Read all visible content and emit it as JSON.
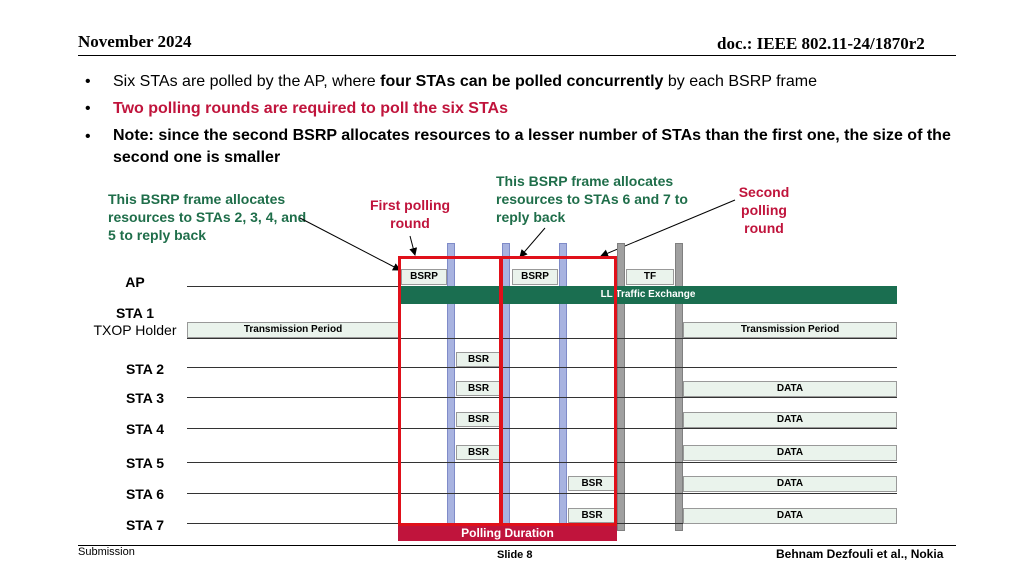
{
  "header": {
    "date": "November 2024",
    "doc": "doc.: IEEE 802.11-24/1870r2"
  },
  "bullets": [
    {
      "pre": "Six STAs are polled by the AP, where ",
      "bold": "four STAs can be polled concurrently",
      "post": " by each BSRP frame"
    },
    {
      "text": "Two polling rounds are required to poll the six STAs"
    },
    {
      "text": "Note: since the second BSRP allocates resources to a lesser number of STAs than the first one, the size of the second one is smaller"
    }
  ],
  "callouts": {
    "bsrp1": "This BSRP frame allocates resources to STAs 2, 3, 4, and 5 to reply back",
    "first_round": "First polling round",
    "bsrp2": "This BSRP frame allocates resources to STAs 6 and 7 to reply back",
    "second_round": "Second polling round"
  },
  "stations": {
    "ap": "AP",
    "sta1": "STA 1",
    "sta1_role": "TXOP Holder",
    "sta2": "STA 2",
    "sta3": "STA 3",
    "sta4": "STA 4",
    "sta5": "STA 5",
    "sta6": "STA 6",
    "sta7": "STA 7"
  },
  "frames": {
    "bsrp": "BSRP",
    "tf": "TF",
    "ll": "LL Traffic Exchange",
    "tx_period": "Transmission Period",
    "bsr": "BSR",
    "data": "DATA",
    "polling_duration": "Polling Duration"
  },
  "colors": {
    "red": "#e0101a",
    "green": "#1a6e50",
    "frame_fill": "#eaf3ec",
    "bar_blue": "#a8b3e0",
    "bar_gray": "#a0a0a0"
  },
  "footer": {
    "left": "Submission",
    "center": "Slide 8",
    "right": "Behnam Dezfouli et al., Nokia"
  }
}
